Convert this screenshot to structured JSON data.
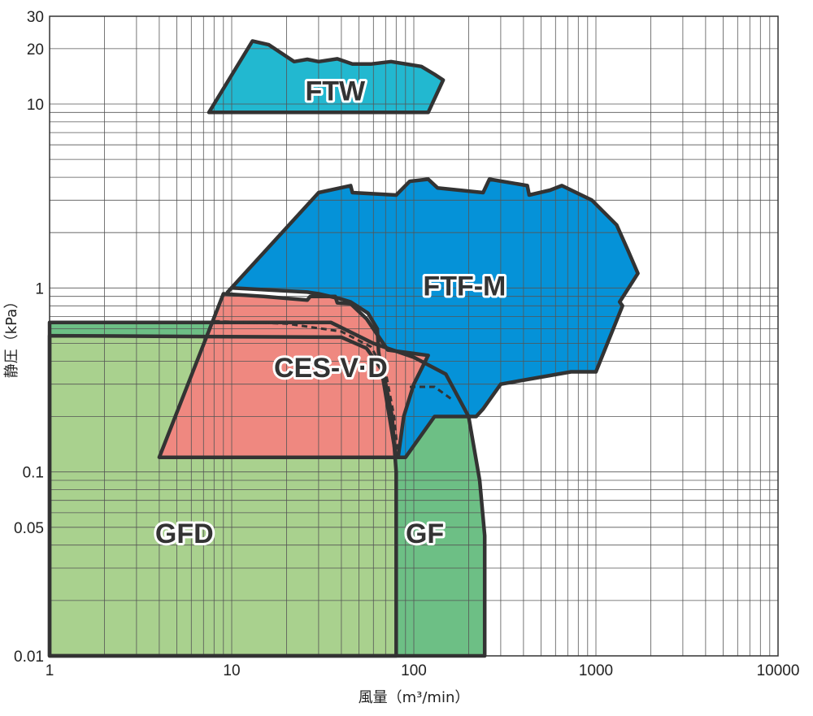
{
  "chart_data": {
    "type": "area",
    "xlabel": "風量（m³/min）",
    "ylabel": "静圧（kPa）",
    "x_scale": "log",
    "y_scale": "log",
    "xlim": [
      1,
      10000
    ],
    "ylim": [
      0.01,
      30
    ],
    "grid": true,
    "x_ticks": [
      {
        "value": 1,
        "label": "1"
      },
      {
        "value": 10,
        "label": "10"
      },
      {
        "value": 100,
        "label": "100"
      },
      {
        "value": 1000,
        "label": "1000"
      },
      {
        "value": 10000,
        "label": "10000"
      }
    ],
    "y_ticks": [
      {
        "value": 0.01,
        "label": "0.01"
      },
      {
        "value": 0.05,
        "label": "0.05"
      },
      {
        "value": 0.1,
        "label": "0.1"
      },
      {
        "value": 1,
        "label": "1"
      },
      {
        "value": 10,
        "label": "10"
      },
      {
        "value": 20,
        "label": "20"
      },
      {
        "value": 30,
        "label": "30"
      }
    ],
    "regions": [
      {
        "id": "gf",
        "name": "GF",
        "color": "#6dbf85",
        "label_at": [
          115,
          0.045
        ],
        "points": [
          [
            1,
            0.01
          ],
          [
            1,
            0.65
          ],
          [
            35,
            0.65
          ],
          [
            60,
            0.5
          ],
          [
            100,
            0.42
          ],
          [
            150,
            0.34
          ],
          [
            200,
            0.2
          ],
          [
            230,
            0.09
          ],
          [
            245,
            0.045
          ],
          [
            245,
            0.01
          ]
        ]
      },
      {
        "id": "gfd",
        "name": "GFD",
        "color": "#a9d18e",
        "label_at": [
          5.5,
          0.045
        ],
        "points": [
          [
            1,
            0.01
          ],
          [
            1,
            0.55
          ],
          [
            40,
            0.54
          ],
          [
            55,
            0.47
          ],
          [
            68,
            0.35
          ],
          [
            76,
            0.2
          ],
          [
            80,
            0.1
          ],
          [
            80,
            0.01
          ]
        ]
      },
      {
        "id": "ftw",
        "name": "FTW",
        "color": "#22b8d0",
        "label_at": [
          37,
          11.5
        ],
        "points": [
          [
            7.5,
            9
          ],
          [
            13,
            22
          ],
          [
            16,
            21
          ],
          [
            22,
            17
          ],
          [
            26,
            17.5
          ],
          [
            30,
            17
          ],
          [
            38,
            17.6
          ],
          [
            46,
            16.5
          ],
          [
            58,
            16.5
          ],
          [
            75,
            17
          ],
          [
            110,
            16
          ],
          [
            130,
            14.5
          ],
          [
            145,
            13.5
          ],
          [
            120,
            9
          ]
        ]
      },
      {
        "id": "ftfm",
        "name": "FTF-M",
        "color": "#0592d8",
        "label_at": [
          190,
          1.0
        ],
        "points": [
          [
            9.5,
            0.95
          ],
          [
            30,
            3.3
          ],
          [
            45,
            3.6
          ],
          [
            46,
            3.3
          ],
          [
            80,
            3.2
          ],
          [
            95,
            3.8
          ],
          [
            120,
            3.9
          ],
          [
            135,
            3.5
          ],
          [
            240,
            3.3
          ],
          [
            260,
            3.9
          ],
          [
            420,
            3.6
          ],
          [
            430,
            3.2
          ],
          [
            560,
            3.4
          ],
          [
            650,
            3.6
          ],
          [
            950,
            3.0
          ],
          [
            1300,
            2.2
          ],
          [
            1500,
            1.6
          ],
          [
            1700,
            1.2
          ],
          [
            1350,
            0.84
          ],
          [
            1400,
            0.8
          ],
          [
            1000,
            0.35
          ],
          [
            730,
            0.35
          ],
          [
            300,
            0.3
          ],
          [
            240,
            0.22
          ],
          [
            220,
            0.2
          ],
          [
            130,
            0.2
          ],
          [
            90,
            0.12
          ],
          [
            80,
            0.12
          ],
          [
            64,
            0.45
          ],
          [
            63,
            0.6
          ],
          [
            56,
            0.73
          ],
          [
            45,
            0.84
          ],
          [
            40,
            0.87
          ],
          [
            30,
            0.93
          ],
          [
            26,
            0.95
          ],
          [
            10,
            1.0
          ]
        ]
      },
      {
        "id": "cesvd",
        "name": "CES-V·D",
        "color": "#ef8880",
        "label_at": [
          35,
          0.36
        ],
        "points": [
          [
            4,
            0.12
          ],
          [
            9,
            0.93
          ],
          [
            15,
            0.9
          ],
          [
            26,
            0.86
          ],
          [
            27,
            0.9
          ],
          [
            37,
            0.9
          ],
          [
            38,
            0.83
          ],
          [
            45,
            0.82
          ],
          [
            55,
            0.68
          ],
          [
            72,
            0.46
          ],
          [
            120,
            0.43
          ],
          [
            100,
            0.3
          ],
          [
            88,
            0.2
          ],
          [
            82,
            0.12
          ]
        ]
      }
    ],
    "boundaries": [
      {
        "id": "gfd-upper-dashed",
        "style": "dashed",
        "points": [
          [
            8,
            0.66
          ],
          [
            20,
            0.64
          ],
          [
            40,
            0.58
          ],
          [
            58,
            0.48
          ],
          [
            70,
            0.35
          ],
          [
            78,
            0.2
          ],
          [
            82,
            0.12
          ]
        ]
      },
      {
        "id": "gf-upper-dashed",
        "style": "dashed",
        "points": [
          [
            95,
            0.29
          ],
          [
            130,
            0.29
          ],
          [
            160,
            0.25
          ]
        ]
      }
    ]
  }
}
